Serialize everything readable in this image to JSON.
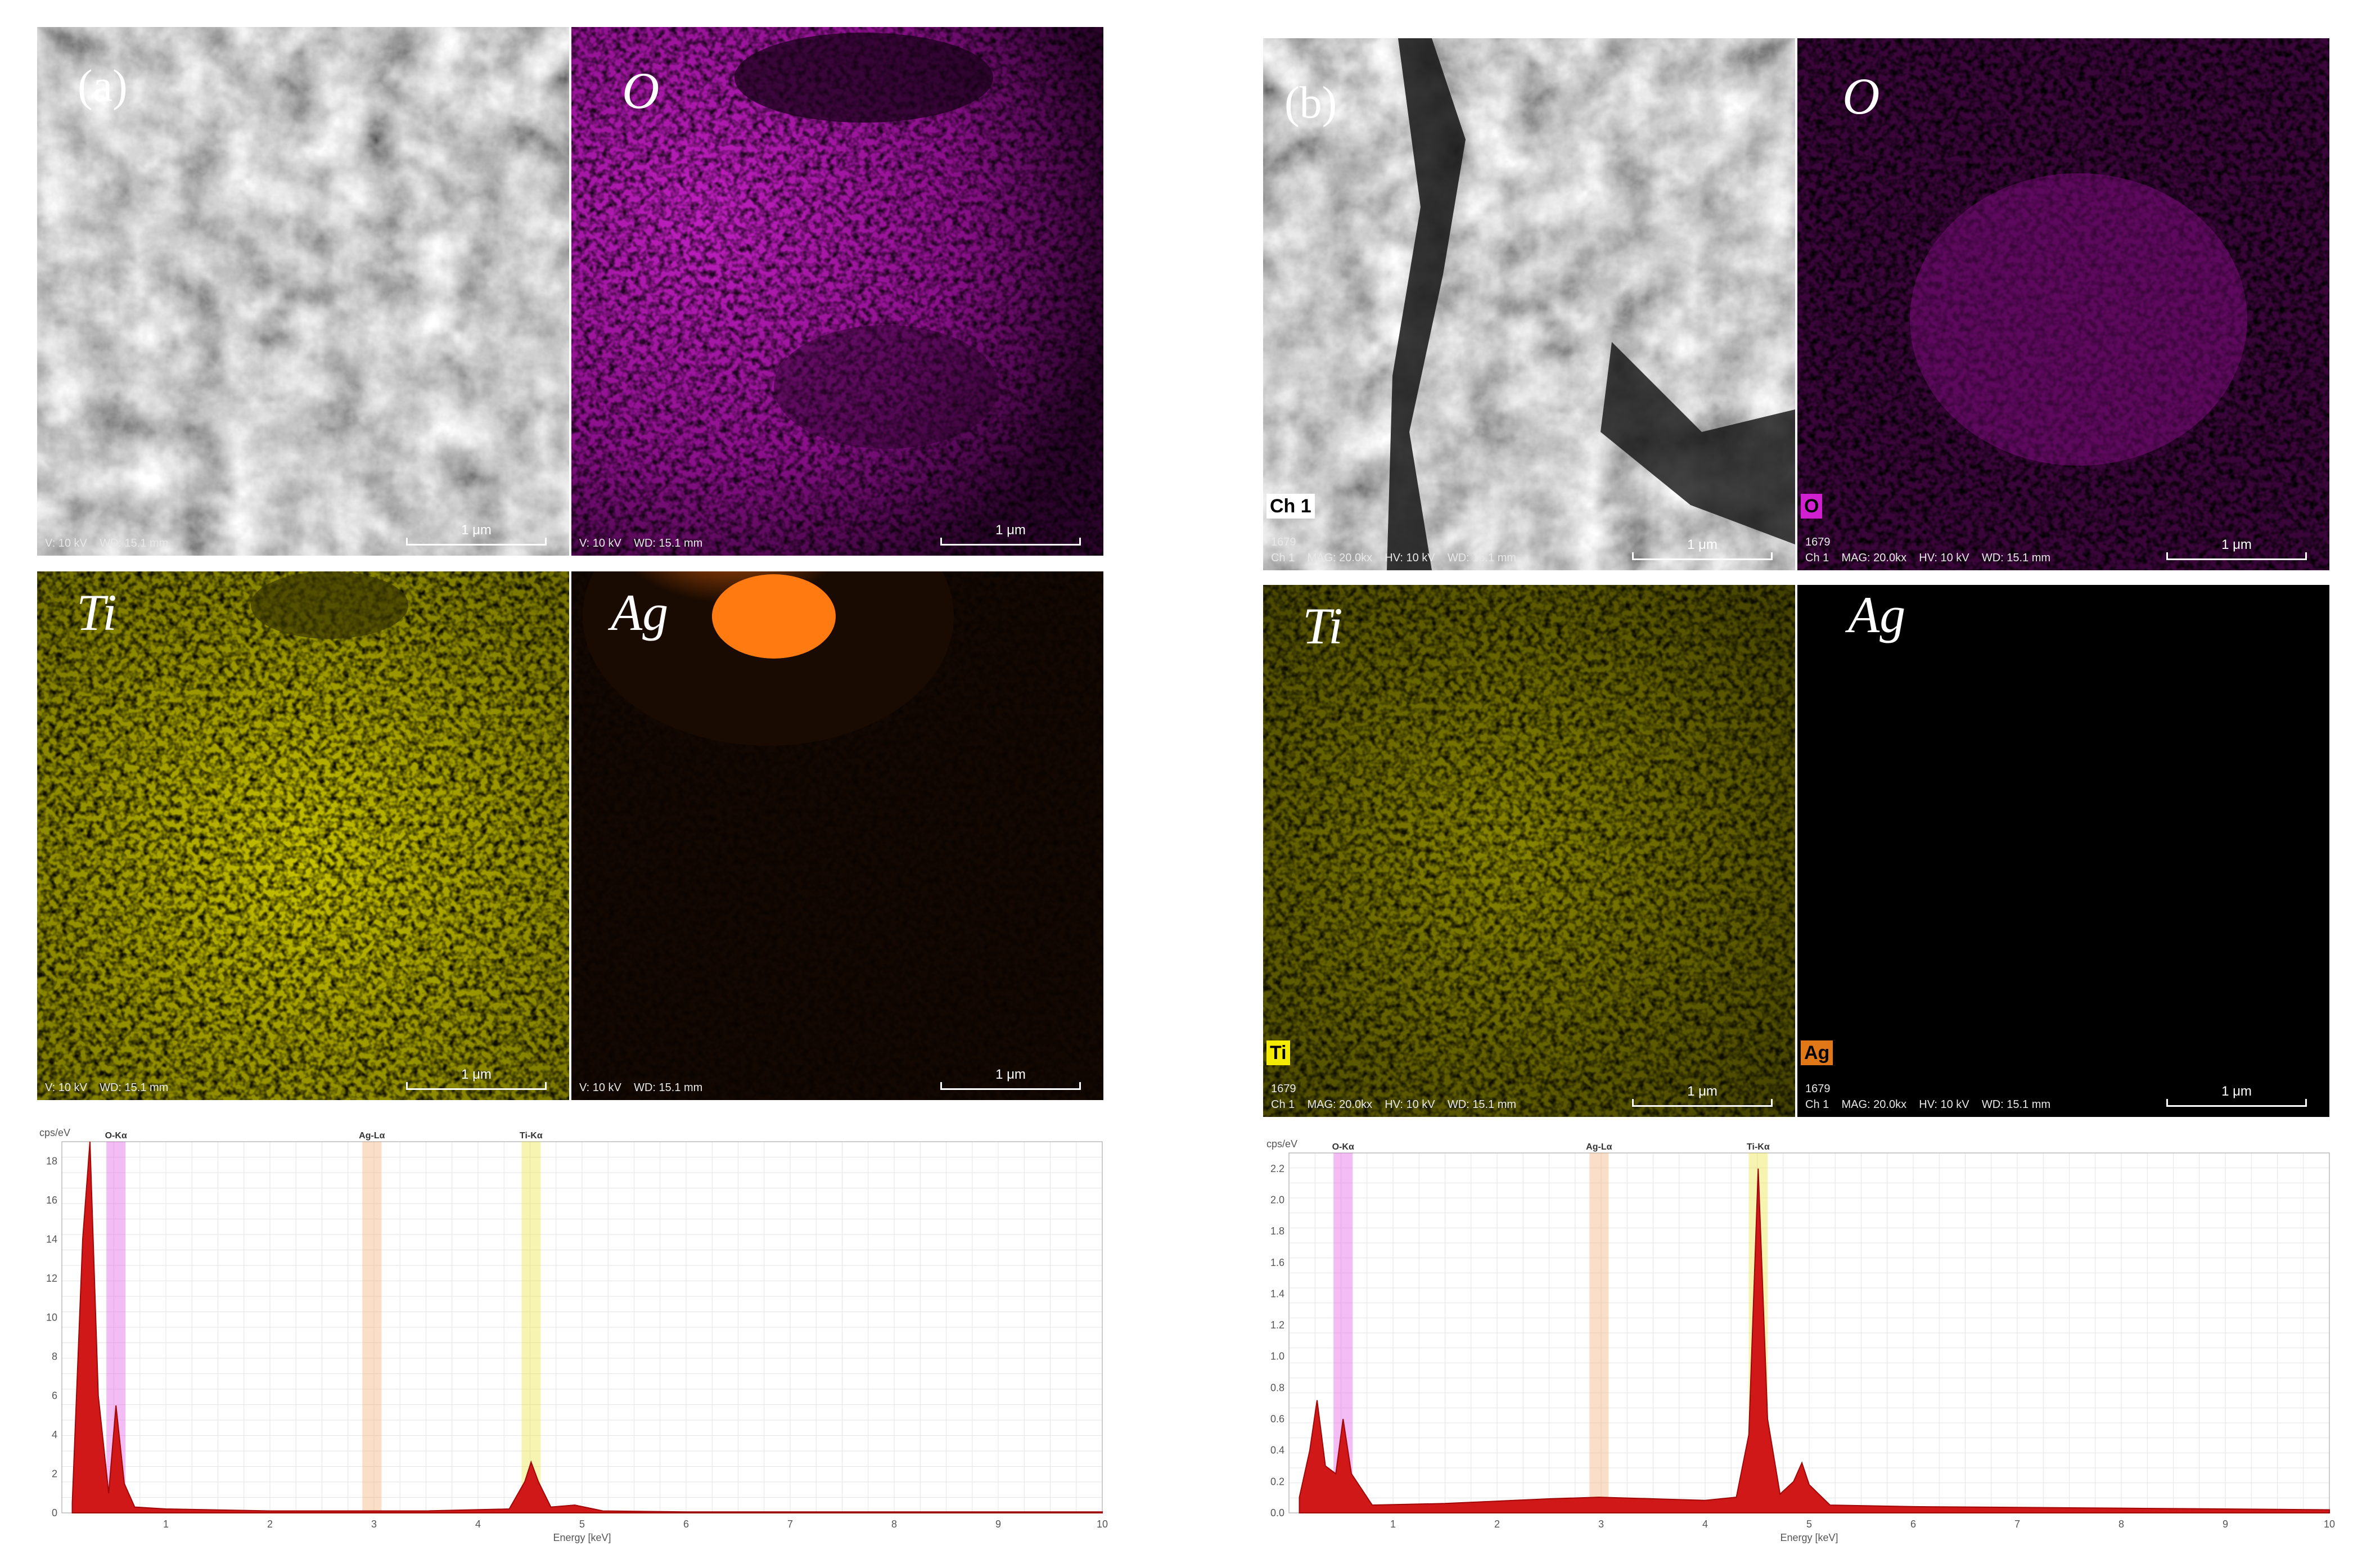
{
  "panels": [
    {
      "id": "a",
      "letter": "(a)",
      "tiles": [
        {
          "label": "",
          "kind": "sem",
          "badge": "",
          "footer_line1": "",
          "footer_line2": "V: 10 kV    WD: 15.1 mm",
          "scale": "1 μm"
        },
        {
          "label": "O",
          "kind": "oxygen",
          "badge": "",
          "footer_line1": "",
          "footer_line2": "V: 10 kV    WD: 15.1 mm",
          "scale": "1 μm"
        },
        {
          "label": "Ti",
          "kind": "titanium",
          "badge": "",
          "footer_line1": "",
          "footer_line2": "V: 10 kV    WD: 15.1 mm",
          "scale": "1 μm"
        },
        {
          "label": "Ag",
          "kind": "silver-a",
          "badge": "",
          "footer_line1": "",
          "footer_line2": "V: 10 kV    WD: 15.1 mm",
          "scale": "1 μm"
        }
      ],
      "spectrum": {
        "y_unit": "cps/eV",
        "x_title": "Energy [keV]",
        "y_ticks": [
          "0",
          "2",
          "4",
          "6",
          "8",
          "10",
          "12",
          "14",
          "16",
          "18"
        ],
        "x_ticks": [
          "1",
          "2",
          "3",
          "4",
          "5",
          "6",
          "7",
          "8",
          "9",
          "10"
        ],
        "line_tags": [
          {
            "text": "O-Kα",
            "energy": 0.52,
            "color": "#e040e0"
          },
          {
            "text": "Ag-Lα",
            "energy": 2.98,
            "color": "#f0a060"
          },
          {
            "text": "Ti-Kα",
            "energy": 4.51,
            "color": "#e8e020"
          }
        ]
      }
    },
    {
      "id": "b",
      "letter": "(b)",
      "tiles": [
        {
          "label": "",
          "kind": "sem",
          "badge": "Ch 1",
          "footer_line1": "1679",
          "footer_line2": "Ch 1    MAG: 20.0kx    HV: 10 kV    WD: 15.1 mm",
          "scale": "1 μm"
        },
        {
          "label": "O",
          "kind": "oxygen",
          "badge": "O",
          "footer_line1": "1679",
          "footer_line2": "Ch 1    MAG: 20.0kx    HV: 10 kV    WD: 15.1 mm",
          "scale": "1 μm"
        },
        {
          "label": "Ti",
          "kind": "titanium",
          "badge": "Ti",
          "footer_line1": "1679",
          "footer_line2": "Ch 1    MAG: 20.0kx    HV: 10 kV    WD: 15.1 mm",
          "scale": "1 μm"
        },
        {
          "label": "Ag",
          "kind": "silver-b",
          "badge": "Ag",
          "footer_line1": "1679",
          "footer_line2": "Ch 1    MAG: 20.0kx    HV: 10 kV    WD: 15.1 mm",
          "scale": "1 μm"
        }
      ],
      "spectrum": {
        "y_unit": "cps/eV",
        "x_title": "Energy [keV]",
        "y_ticks": [
          "0.0",
          "0.2",
          "0.4",
          "0.6",
          "0.8",
          "1.0",
          "1.2",
          "1.4",
          "1.6",
          "1.8",
          "2.0",
          "2.2"
        ],
        "x_ticks": [
          "1",
          "2",
          "3",
          "4",
          "5",
          "6",
          "7",
          "8",
          "9",
          "10"
        ],
        "line_tags": [
          {
            "text": "O-Kα",
            "energy": 0.52,
            "color": "#e040e0"
          },
          {
            "text": "Ag-Lα",
            "energy": 2.98,
            "color": "#f0a060"
          },
          {
            "text": "Ti-Kα",
            "energy": 4.51,
            "color": "#e8e020"
          }
        ]
      }
    }
  ],
  "chart_data": [
    {
      "type": "area",
      "title": "",
      "xlabel": "Energy [keV]",
      "ylabel": "cps/eV",
      "xlim": [
        0,
        10
      ],
      "ylim": [
        0,
        19
      ],
      "x": [
        0.1,
        0.2,
        0.27,
        0.35,
        0.45,
        0.52,
        0.6,
        0.7,
        1.0,
        2.0,
        2.98,
        3.5,
        4.3,
        4.45,
        4.51,
        4.58,
        4.7,
        4.93,
        5.2,
        6.0,
        8.0,
        10.0
      ],
      "series": [
        {
          "values": [
            0.5,
            14.0,
            19.0,
            6.0,
            1.0,
            5.5,
            1.5,
            0.3,
            0.2,
            0.1,
            0.1,
            0.1,
            0.2,
            1.6,
            2.6,
            1.6,
            0.3,
            0.4,
            0.1,
            0.05,
            0.05,
            0.05
          ]
        }
      ]
    },
    {
      "type": "area",
      "title": "",
      "xlabel": "Energy [keV]",
      "ylabel": "cps/eV",
      "xlim": [
        0,
        10
      ],
      "ylim": [
        0,
        2.3
      ],
      "x": [
        0.1,
        0.2,
        0.27,
        0.35,
        0.45,
        0.52,
        0.6,
        0.8,
        1.5,
        2.5,
        2.98,
        3.5,
        4.0,
        4.3,
        4.42,
        4.51,
        4.6,
        4.72,
        4.85,
        4.93,
        5.0,
        5.2,
        6.0,
        8.0,
        10.0
      ],
      "series": [
        {
          "values": [
            0.1,
            0.4,
            0.72,
            0.3,
            0.25,
            0.6,
            0.25,
            0.05,
            0.06,
            0.09,
            0.1,
            0.09,
            0.08,
            0.1,
            0.5,
            2.2,
            0.6,
            0.12,
            0.2,
            0.32,
            0.18,
            0.05,
            0.04,
            0.03,
            0.02
          ]
        }
      ]
    }
  ]
}
